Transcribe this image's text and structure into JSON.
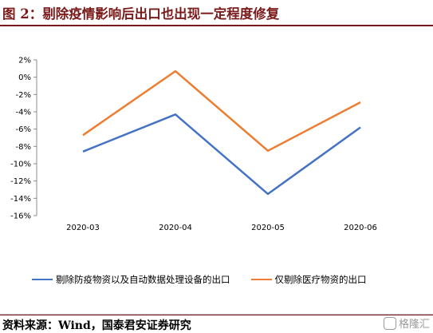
{
  "header": {
    "title": "图 2：剔除疫情影响后出口也出现一定程度修复"
  },
  "footer": {
    "source": "资料来源：Wind，国泰君安证券研究",
    "watermark": "格隆汇"
  },
  "chart_data": {
    "type": "line",
    "categories": [
      "2020-03",
      "2020-04",
      "2020-05",
      "2020-06"
    ],
    "yticks": [
      "2%",
      "0%",
      "-2%",
      "-4%",
      "-6%",
      "-8%",
      "-10%",
      "-12%",
      "-14%",
      "-16%"
    ],
    "ylim": [
      -16,
      2
    ],
    "grid": false,
    "legend_position": "bottom",
    "series": [
      {
        "name": "剔除防疫物资以及自动数据处理设备的出口",
        "color": "#4472c4",
        "values": [
          -8.6,
          -4.3,
          -13.5,
          -5.8
        ]
      },
      {
        "name": "仅剔除医疗物资的出口",
        "color": "#ed7d31",
        "values": [
          -6.7,
          0.7,
          -8.5,
          -2.9
        ]
      }
    ]
  }
}
